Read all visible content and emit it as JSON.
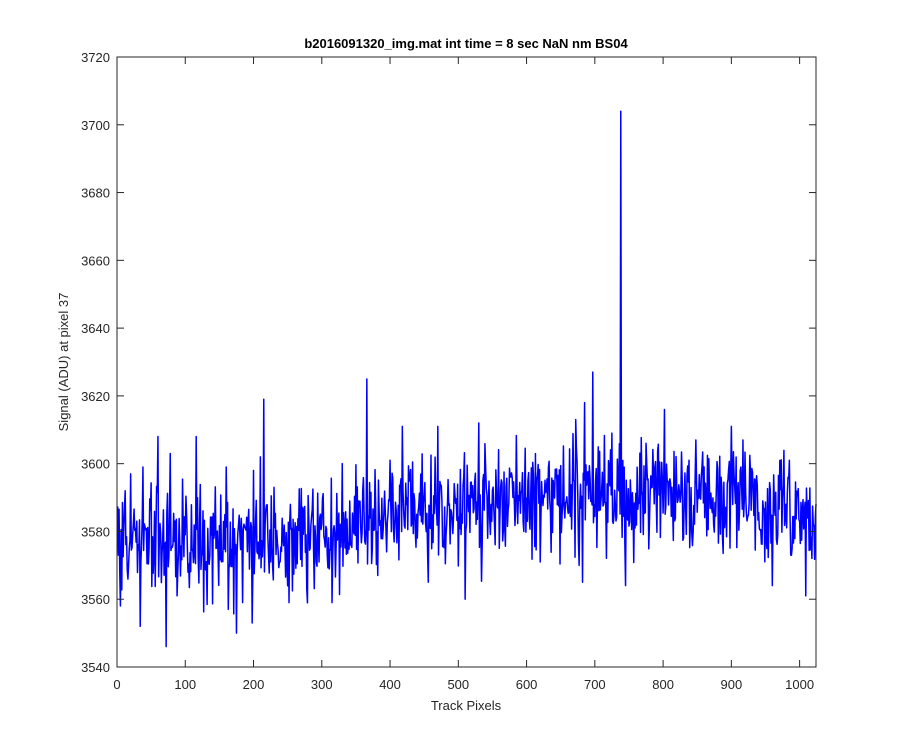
{
  "chart_data": {
    "type": "line",
    "title": "b2016091320_img.mat int time = 8 sec  NaN nm BS04",
    "xlabel": "Track Pixels",
    "ylabel": "Signal (ADU) at pixel 37",
    "xlim": [
      0,
      1024
    ],
    "ylim": [
      3540,
      3720
    ],
    "xticks": [
      0,
      100,
      200,
      300,
      400,
      500,
      600,
      700,
      800,
      900,
      1000
    ],
    "yticks": [
      3540,
      3560,
      3580,
      3600,
      3620,
      3640,
      3660,
      3680,
      3700,
      3720
    ],
    "grid": false,
    "series_color": "#0000ff",
    "trend": [
      [
        0,
        3577
      ],
      [
        150,
        3576
      ],
      [
        300,
        3579
      ],
      [
        370,
        3584
      ],
      [
        500,
        3588
      ],
      [
        600,
        3589
      ],
      [
        700,
        3590
      ],
      [
        800,
        3591
      ],
      [
        900,
        3588
      ],
      [
        1024,
        3582
      ]
    ],
    "spikes": [
      [
        5,
        3558
      ],
      [
        12,
        3592
      ],
      [
        20,
        3597
      ],
      [
        34,
        3552
      ],
      [
        38,
        3599
      ],
      [
        60,
        3608
      ],
      [
        72,
        3546
      ],
      [
        78,
        3603
      ],
      [
        88,
        3561
      ],
      [
        116,
        3608
      ],
      [
        160,
        3599
      ],
      [
        163,
        3557
      ],
      [
        175,
        3550
      ],
      [
        184,
        3559
      ],
      [
        198,
        3553
      ],
      [
        210,
        3602
      ],
      [
        215,
        3619
      ],
      [
        252,
        3559
      ],
      [
        315,
        3559
      ],
      [
        330,
        3600
      ],
      [
        366,
        3625
      ],
      [
        382,
        3567
      ],
      [
        418,
        3611
      ],
      [
        456,
        3565
      ],
      [
        470,
        3611
      ],
      [
        510,
        3560
      ],
      [
        530,
        3612
      ],
      [
        560,
        3575
      ],
      [
        620,
        3571
      ],
      [
        672,
        3613
      ],
      [
        677,
        3570
      ],
      [
        682,
        3565
      ],
      [
        685,
        3618
      ],
      [
        697,
        3627
      ],
      [
        725,
        3609
      ],
      [
        738,
        3704
      ],
      [
        745,
        3564
      ],
      [
        775,
        3606
      ],
      [
        802,
        3616
      ],
      [
        838,
        3601
      ],
      [
        848,
        3607
      ],
      [
        900,
        3611
      ],
      [
        917,
        3607
      ],
      [
        960,
        3564
      ],
      [
        985,
        3601
      ],
      [
        1009,
        3561
      ]
    ],
    "noise_amplitude": 9.5,
    "noise_seed": 2016091320
  }
}
